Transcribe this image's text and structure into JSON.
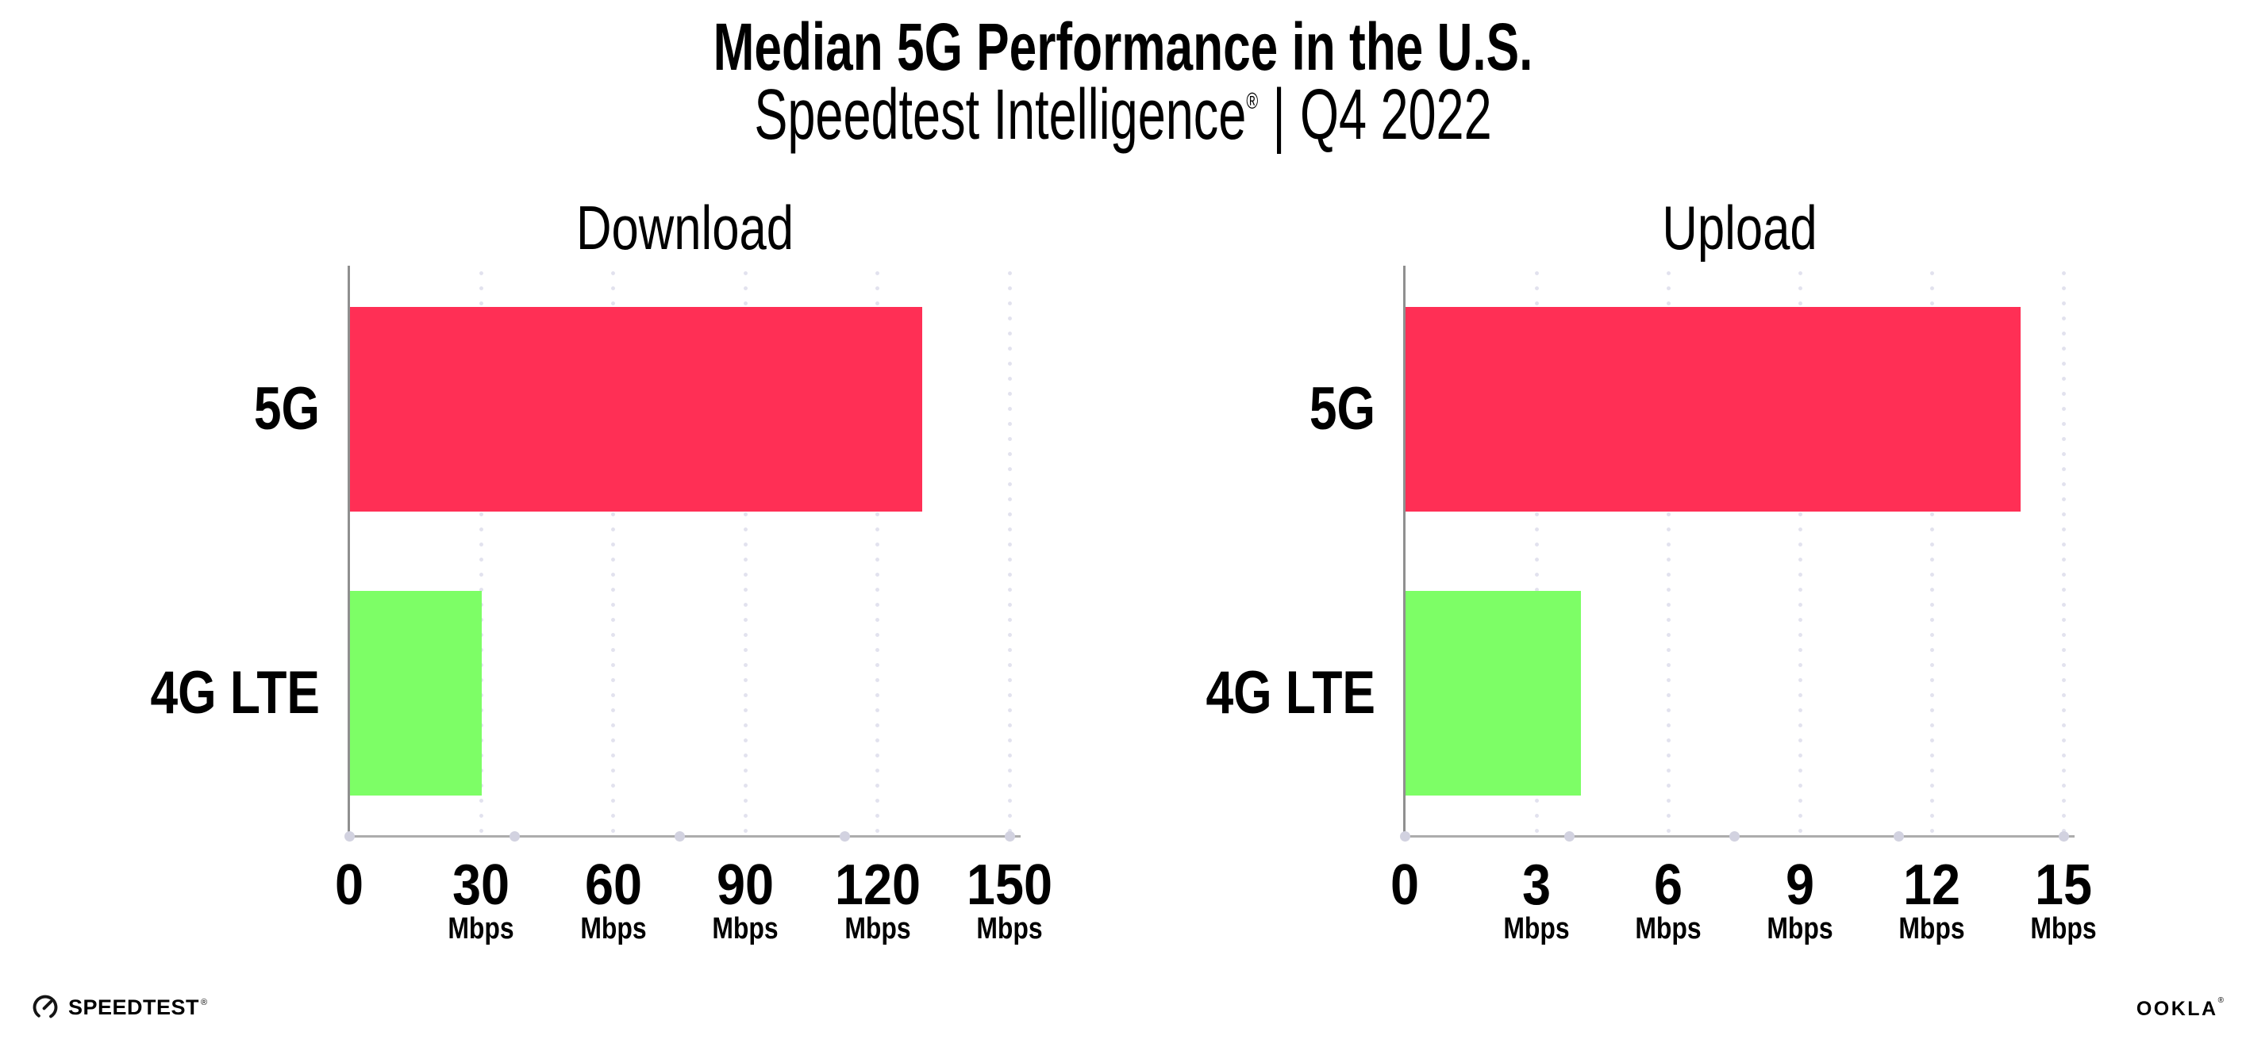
{
  "header": {
    "title": "Median 5G Performance in the U.S.",
    "subtitle_brand": "Speedtest Intelligence",
    "subtitle_reg": "®",
    "subtitle_sep": "|",
    "subtitle_period": "Q4 2022"
  },
  "chart_data": [
    {
      "type": "bar",
      "orientation": "horizontal",
      "title": "Download",
      "categories": [
        "5G",
        "4G LTE"
      ],
      "values": [
        130,
        30
      ],
      "unit": "Mbps",
      "tick_unit": "Mbps",
      "xlim": [
        0,
        150
      ],
      "xticks": [
        0,
        30,
        60,
        90,
        120,
        150
      ],
      "grid": "dotted-vertical",
      "legend": "none",
      "bar_colors": [
        "#FF2F55",
        "#7DFE66"
      ]
    },
    {
      "type": "bar",
      "orientation": "horizontal",
      "title": "Upload",
      "categories": [
        "5G",
        "4G LTE"
      ],
      "values": [
        14,
        4
      ],
      "unit": "Mbps",
      "tick_unit": "Mbps",
      "xlim": [
        0,
        15
      ],
      "xticks": [
        0,
        3,
        6,
        9,
        12,
        15
      ],
      "grid": "dotted-vertical",
      "legend": "none",
      "bar_colors": [
        "#FF2F55",
        "#7DFE66"
      ]
    }
  ],
  "colors": {
    "bar_5g": "#FF2F55",
    "bar_4g_lte": "#7DFE66",
    "axis_line": "#8f8f8f",
    "baseline": "#acacac",
    "gridline_dots": "#e2e2ee",
    "axis_tick_dots": "#d2d2e0",
    "text": "#000000",
    "background": "#ffffff"
  },
  "footer": {
    "speedtest_label": "SPEEDTEST",
    "speedtest_mark": "®",
    "ookla_label": "OOKLA",
    "ookla_mark": "®"
  }
}
